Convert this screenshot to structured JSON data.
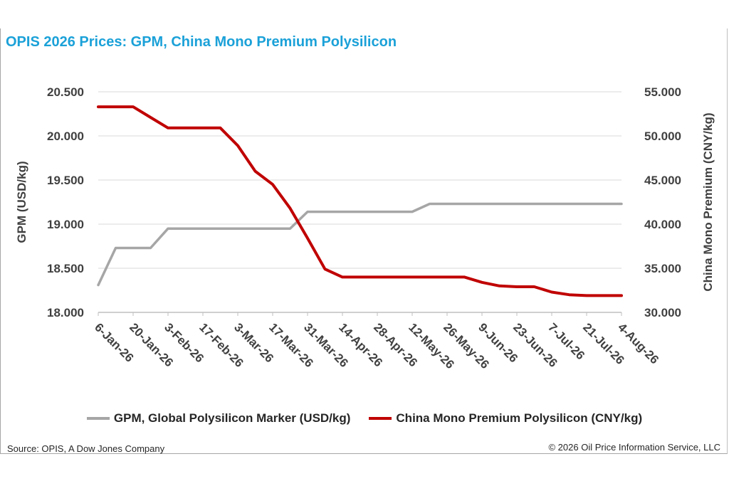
{
  "title": "OPIS 2026 Prices: GPM, China Mono Premium Polysilicon",
  "source": "Source: OPIS, A Dow Jones Company",
  "copyright": "© 2026 Oil Price Information Service, LLC",
  "colors": {
    "title": "#1ba1d8",
    "gpm": "#a6a6a6",
    "china": "#c00000",
    "grid": "#d9d9d9"
  },
  "chart_data": {
    "type": "line",
    "title": "OPIS 2026 Prices: GPM, China Mono Premium Polysilicon",
    "x_tick_labels": [
      "6-Jan-26",
      "20-Jan-26",
      "3-Feb-26",
      "17-Feb-26",
      "3-Mar-26",
      "17-Mar-26",
      "31-Mar-26",
      "14-Apr-26",
      "28-Apr-26",
      "12-May-26",
      "26-May-26",
      "9-Jun-26",
      "23-Jun-26",
      "7-Jul-26",
      "21-Jul-26",
      "4-Aug-26"
    ],
    "x_start": "2026-01-06",
    "x_end": "2026-08-04",
    "ylabel_left": "GPM (USD/kg)",
    "ylabel_right": "China Mono Premium (CNY/kg)",
    "ylim_left": [
      18.0,
      20.5
    ],
    "ylim_right": [
      30.0,
      55.0
    ],
    "yticks_left": [
      "18.000",
      "18.500",
      "19.000",
      "19.500",
      "20.000",
      "20.500"
    ],
    "yticks_right": [
      "30.000",
      "35.000",
      "40.000",
      "45.000",
      "50.000",
      "55.000"
    ],
    "grid": "horizontal",
    "legend_position": "bottom",
    "series": [
      {
        "name": "GPM, Global Polysilicon Marker (USD/kg)",
        "axis": "left",
        "points": [
          [
            "2026-01-06",
            18.31
          ],
          [
            "2026-01-13",
            18.73
          ],
          [
            "2026-01-20",
            18.73
          ],
          [
            "2026-01-27",
            18.73
          ],
          [
            "2026-02-03",
            18.95
          ],
          [
            "2026-02-10",
            18.95
          ],
          [
            "2026-02-17",
            18.95
          ],
          [
            "2026-02-24",
            18.95
          ],
          [
            "2026-03-03",
            18.95
          ],
          [
            "2026-03-10",
            18.95
          ],
          [
            "2026-03-17",
            18.95
          ],
          [
            "2026-03-24",
            18.95
          ],
          [
            "2026-03-31",
            19.14
          ],
          [
            "2026-04-07",
            19.14
          ],
          [
            "2026-04-14",
            19.14
          ],
          [
            "2026-04-21",
            19.14
          ],
          [
            "2026-04-28",
            19.14
          ],
          [
            "2026-05-05",
            19.14
          ],
          [
            "2026-05-12",
            19.14
          ],
          [
            "2026-05-19",
            19.23
          ],
          [
            "2026-05-26",
            19.23
          ],
          [
            "2026-06-02",
            19.23
          ],
          [
            "2026-06-09",
            19.23
          ],
          [
            "2026-06-16",
            19.23
          ],
          [
            "2026-06-23",
            19.23
          ],
          [
            "2026-06-30",
            19.23
          ],
          [
            "2026-07-07",
            19.23
          ],
          [
            "2026-07-14",
            19.23
          ],
          [
            "2026-07-21",
            19.23
          ],
          [
            "2026-07-28",
            19.23
          ],
          [
            "2026-08-04",
            19.23
          ]
        ]
      },
      {
        "name": "China Mono Premium Polysilicon (CNY/kg)",
        "axis": "right",
        "points": [
          [
            "2026-01-06",
            53.3
          ],
          [
            "2026-01-13",
            53.3
          ],
          [
            "2026-01-20",
            53.3
          ],
          [
            "2026-01-27",
            52.1
          ],
          [
            "2026-02-03",
            50.9
          ],
          [
            "2026-02-10",
            50.9
          ],
          [
            "2026-02-17",
            50.9
          ],
          [
            "2026-02-24",
            50.9
          ],
          [
            "2026-03-03",
            48.9
          ],
          [
            "2026-03-10",
            46.0
          ],
          [
            "2026-03-17",
            44.5
          ],
          [
            "2026-03-24",
            41.8
          ],
          [
            "2026-03-31",
            38.4
          ],
          [
            "2026-04-07",
            34.9
          ],
          [
            "2026-04-14",
            34.0
          ],
          [
            "2026-04-21",
            34.0
          ],
          [
            "2026-04-28",
            34.0
          ],
          [
            "2026-05-05",
            34.0
          ],
          [
            "2026-05-12",
            34.0
          ],
          [
            "2026-05-19",
            34.0
          ],
          [
            "2026-05-26",
            34.0
          ],
          [
            "2026-06-02",
            34.0
          ],
          [
            "2026-06-09",
            33.4
          ],
          [
            "2026-06-16",
            33.0
          ],
          [
            "2026-06-23",
            32.9
          ],
          [
            "2026-06-30",
            32.9
          ],
          [
            "2026-07-07",
            32.3
          ],
          [
            "2026-07-14",
            32.0
          ],
          [
            "2026-07-21",
            31.9
          ],
          [
            "2026-07-28",
            31.9
          ],
          [
            "2026-08-04",
            31.9
          ]
        ]
      }
    ]
  }
}
